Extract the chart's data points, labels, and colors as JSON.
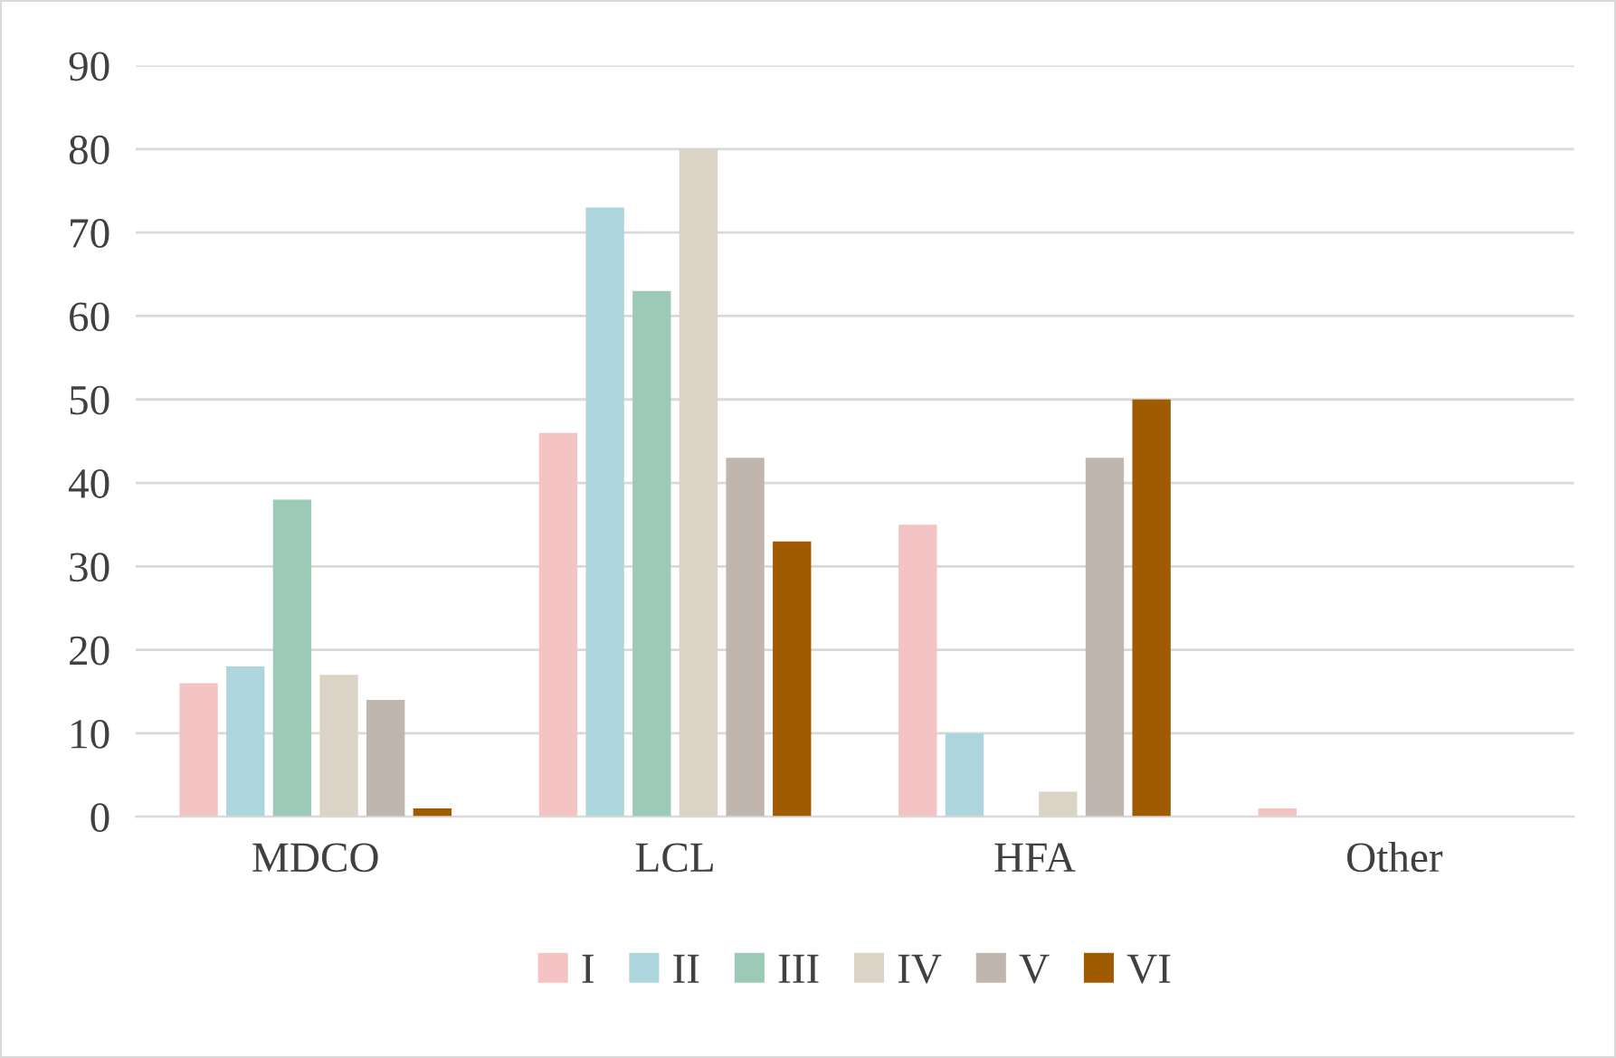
{
  "chart_data": {
    "type": "bar",
    "categories": [
      "MDCO",
      "LCL",
      "HFA",
      "Other"
    ],
    "series": [
      {
        "name": "I",
        "color": "#f4c3c3",
        "values": [
          16,
          46,
          35,
          1
        ]
      },
      {
        "name": "II",
        "color": "#add5dd",
        "values": [
          18,
          73,
          10,
          0
        ]
      },
      {
        "name": "III",
        "color": "#9dcab6",
        "values": [
          38,
          63,
          0,
          0
        ]
      },
      {
        "name": "IV",
        "color": "#dbd3c6",
        "values": [
          17,
          80,
          3,
          0
        ]
      },
      {
        "name": "V",
        "color": "#c1b6ae",
        "values": [
          14,
          43,
          43,
          0
        ]
      },
      {
        "name": "VI",
        "color": "#a05a00",
        "values": [
          1,
          33,
          50,
          0
        ]
      }
    ],
    "ylim": [
      0,
      90
    ],
    "yticks": [
      0,
      10,
      20,
      30,
      40,
      50,
      60,
      70,
      80,
      90
    ],
    "grid": "y",
    "legend": "bottom"
  }
}
